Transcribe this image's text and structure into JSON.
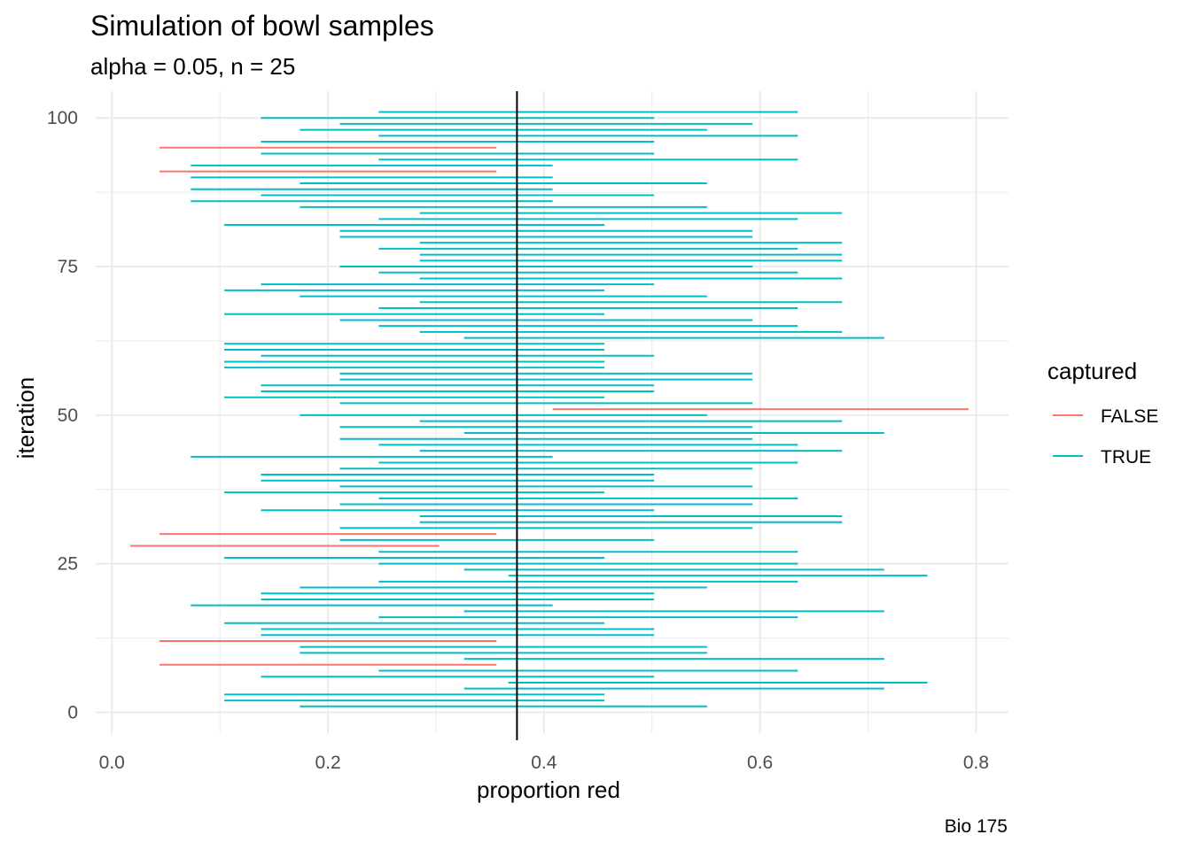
{
  "chart_data": {
    "type": "interval",
    "title": "Simulation of bowl samples",
    "subtitle": "alpha = 0.05, n = 25",
    "xlabel": "proportion red",
    "ylabel": "iteration",
    "caption": "Bio 175",
    "xlim": [
      -0.015,
      0.83
    ],
    "ylim": [
      -3.5,
      104.5
    ],
    "x_ticks": [
      {
        "value": 0,
        "label": "0.0"
      },
      {
        "value": 0.2,
        "label": "0.2"
      },
      {
        "value": 0.4,
        "label": "0.4"
      },
      {
        "value": 0.6,
        "label": "0.6"
      },
      {
        "value": 0.8,
        "label": "0.8"
      }
    ],
    "y_ticks": [
      {
        "value": 0,
        "label": "0"
      },
      {
        "value": 25,
        "label": "25"
      },
      {
        "value": 50,
        "label": "50"
      },
      {
        "value": 75,
        "label": "75"
      },
      {
        "value": 100,
        "label": "100"
      }
    ],
    "reference_line": 0.375,
    "grid": true,
    "legend": {
      "title": "captured",
      "position": "right",
      "entries": [
        {
          "label": "FALSE",
          "color": "#F8766D"
        },
        {
          "label": "TRUE",
          "color": "#00BFC4"
        }
      ]
    },
    "intervals": [
      {
        "y": 1,
        "low": 0.174,
        "high": 0.551,
        "captured": true
      },
      {
        "y": 2,
        "low": 0.104,
        "high": 0.456,
        "captured": true
      },
      {
        "y": 3,
        "low": 0.104,
        "high": 0.456,
        "captured": true
      },
      {
        "y": 4,
        "low": 0.326,
        "high": 0.715,
        "captured": true
      },
      {
        "y": 5,
        "low": 0.367,
        "high": 0.755,
        "captured": true
      },
      {
        "y": 6,
        "low": 0.138,
        "high": 0.502,
        "captured": true
      },
      {
        "y": 7,
        "low": 0.247,
        "high": 0.635,
        "captured": true
      },
      {
        "y": 8,
        "low": 0.044,
        "high": 0.356,
        "captured": false
      },
      {
        "y": 9,
        "low": 0.326,
        "high": 0.715,
        "captured": true
      },
      {
        "y": 10,
        "low": 0.174,
        "high": 0.551,
        "captured": true
      },
      {
        "y": 11,
        "low": 0.174,
        "high": 0.551,
        "captured": true
      },
      {
        "y": 12,
        "low": 0.044,
        "high": 0.356,
        "captured": false
      },
      {
        "y": 13,
        "low": 0.138,
        "high": 0.502,
        "captured": true
      },
      {
        "y": 14,
        "low": 0.138,
        "high": 0.502,
        "captured": true
      },
      {
        "y": 15,
        "low": 0.104,
        "high": 0.456,
        "captured": true
      },
      {
        "y": 16,
        "low": 0.247,
        "high": 0.635,
        "captured": true
      },
      {
        "y": 17,
        "low": 0.326,
        "high": 0.715,
        "captured": true
      },
      {
        "y": 18,
        "low": 0.073,
        "high": 0.408,
        "captured": true
      },
      {
        "y": 19,
        "low": 0.138,
        "high": 0.502,
        "captured": true
      },
      {
        "y": 20,
        "low": 0.138,
        "high": 0.502,
        "captured": true
      },
      {
        "y": 21,
        "low": 0.174,
        "high": 0.551,
        "captured": true
      },
      {
        "y": 22,
        "low": 0.247,
        "high": 0.635,
        "captured": true
      },
      {
        "y": 23,
        "low": 0.367,
        "high": 0.755,
        "captured": true
      },
      {
        "y": 24,
        "low": 0.326,
        "high": 0.715,
        "captured": true
      },
      {
        "y": 25,
        "low": 0.247,
        "high": 0.635,
        "captured": true
      },
      {
        "y": 26,
        "low": 0.104,
        "high": 0.456,
        "captured": true
      },
      {
        "y": 27,
        "low": 0.247,
        "high": 0.635,
        "captured": true
      },
      {
        "y": 28,
        "low": 0.017,
        "high": 0.303,
        "captured": false
      },
      {
        "y": 29,
        "low": 0.211,
        "high": 0.502,
        "captured": true
      },
      {
        "y": 30,
        "low": 0.044,
        "high": 0.356,
        "captured": false
      },
      {
        "y": 31,
        "low": 0.211,
        "high": 0.593,
        "captured": true
      },
      {
        "y": 32,
        "low": 0.285,
        "high": 0.676,
        "captured": true
      },
      {
        "y": 33,
        "low": 0.285,
        "high": 0.676,
        "captured": true
      },
      {
        "y": 34,
        "low": 0.138,
        "high": 0.502,
        "captured": true
      },
      {
        "y": 35,
        "low": 0.211,
        "high": 0.593,
        "captured": true
      },
      {
        "y": 36,
        "low": 0.247,
        "high": 0.635,
        "captured": true
      },
      {
        "y": 37,
        "low": 0.104,
        "high": 0.456,
        "captured": true
      },
      {
        "y": 38,
        "low": 0.211,
        "high": 0.593,
        "captured": true
      },
      {
        "y": 39,
        "low": 0.138,
        "high": 0.502,
        "captured": true
      },
      {
        "y": 40,
        "low": 0.138,
        "high": 0.502,
        "captured": true
      },
      {
        "y": 41,
        "low": 0.211,
        "high": 0.593,
        "captured": true
      },
      {
        "y": 42,
        "low": 0.247,
        "high": 0.635,
        "captured": true
      },
      {
        "y": 43,
        "low": 0.073,
        "high": 0.408,
        "captured": true
      },
      {
        "y": 44,
        "low": 0.285,
        "high": 0.676,
        "captured": true
      },
      {
        "y": 45,
        "low": 0.247,
        "high": 0.635,
        "captured": true
      },
      {
        "y": 46,
        "low": 0.211,
        "high": 0.593,
        "captured": true
      },
      {
        "y": 47,
        "low": 0.326,
        "high": 0.715,
        "captured": true
      },
      {
        "y": 48,
        "low": 0.211,
        "high": 0.593,
        "captured": true
      },
      {
        "y": 49,
        "low": 0.285,
        "high": 0.676,
        "captured": true
      },
      {
        "y": 50,
        "low": 0.174,
        "high": 0.551,
        "captured": true
      },
      {
        "y": 51,
        "low": 0.408,
        "high": 0.793,
        "captured": false
      },
      {
        "y": 52,
        "low": 0.211,
        "high": 0.593,
        "captured": true
      },
      {
        "y": 53,
        "low": 0.104,
        "high": 0.456,
        "captured": true
      },
      {
        "y": 54,
        "low": 0.138,
        "high": 0.502,
        "captured": true
      },
      {
        "y": 55,
        "low": 0.138,
        "high": 0.502,
        "captured": true
      },
      {
        "y": 56,
        "low": 0.211,
        "high": 0.593,
        "captured": true
      },
      {
        "y": 57,
        "low": 0.211,
        "high": 0.593,
        "captured": true
      },
      {
        "y": 58,
        "low": 0.104,
        "high": 0.456,
        "captured": true
      },
      {
        "y": 59,
        "low": 0.104,
        "high": 0.456,
        "captured": true
      },
      {
        "y": 60,
        "low": 0.138,
        "high": 0.502,
        "captured": true
      },
      {
        "y": 61,
        "low": 0.104,
        "high": 0.456,
        "captured": true
      },
      {
        "y": 62,
        "low": 0.104,
        "high": 0.456,
        "captured": true
      },
      {
        "y": 63,
        "low": 0.326,
        "high": 0.715,
        "captured": true
      },
      {
        "y": 64,
        "low": 0.285,
        "high": 0.676,
        "captured": true
      },
      {
        "y": 65,
        "low": 0.247,
        "high": 0.635,
        "captured": true
      },
      {
        "y": 66,
        "low": 0.211,
        "high": 0.593,
        "captured": true
      },
      {
        "y": 67,
        "low": 0.104,
        "high": 0.456,
        "captured": true
      },
      {
        "y": 68,
        "low": 0.247,
        "high": 0.635,
        "captured": true
      },
      {
        "y": 69,
        "low": 0.285,
        "high": 0.676,
        "captured": true
      },
      {
        "y": 70,
        "low": 0.174,
        "high": 0.551,
        "captured": true
      },
      {
        "y": 71,
        "low": 0.104,
        "high": 0.456,
        "captured": true
      },
      {
        "y": 72,
        "low": 0.138,
        "high": 0.502,
        "captured": true
      },
      {
        "y": 73,
        "low": 0.285,
        "high": 0.676,
        "captured": true
      },
      {
        "y": 74,
        "low": 0.247,
        "high": 0.635,
        "captured": true
      },
      {
        "y": 75,
        "low": 0.211,
        "high": 0.593,
        "captured": true
      },
      {
        "y": 76,
        "low": 0.285,
        "high": 0.676,
        "captured": true
      },
      {
        "y": 77,
        "low": 0.285,
        "high": 0.676,
        "captured": true
      },
      {
        "y": 78,
        "low": 0.247,
        "high": 0.635,
        "captured": true
      },
      {
        "y": 79,
        "low": 0.285,
        "high": 0.676,
        "captured": true
      },
      {
        "y": 80,
        "low": 0.211,
        "high": 0.593,
        "captured": true
      },
      {
        "y": 81,
        "low": 0.211,
        "high": 0.593,
        "captured": true
      },
      {
        "y": 82,
        "low": 0.104,
        "high": 0.456,
        "captured": true
      },
      {
        "y": 83,
        "low": 0.247,
        "high": 0.635,
        "captured": true
      },
      {
        "y": 84,
        "low": 0.285,
        "high": 0.676,
        "captured": true
      },
      {
        "y": 85,
        "low": 0.174,
        "high": 0.551,
        "captured": true
      },
      {
        "y": 86,
        "low": 0.073,
        "high": 0.408,
        "captured": true
      },
      {
        "y": 87,
        "low": 0.138,
        "high": 0.502,
        "captured": true
      },
      {
        "y": 88,
        "low": 0.073,
        "high": 0.408,
        "captured": true
      },
      {
        "y": 89,
        "low": 0.174,
        "high": 0.551,
        "captured": true
      },
      {
        "y": 90,
        "low": 0.073,
        "high": 0.408,
        "captured": true
      },
      {
        "y": 91,
        "low": 0.044,
        "high": 0.356,
        "captured": false
      },
      {
        "y": 92,
        "low": 0.073,
        "high": 0.408,
        "captured": true
      },
      {
        "y": 93,
        "low": 0.247,
        "high": 0.635,
        "captured": true
      },
      {
        "y": 94,
        "low": 0.138,
        "high": 0.502,
        "captured": true
      },
      {
        "y": 95,
        "low": 0.044,
        "high": 0.356,
        "captured": false
      },
      {
        "y": 96,
        "low": 0.138,
        "high": 0.502,
        "captured": true
      },
      {
        "y": 97,
        "low": 0.247,
        "high": 0.635,
        "captured": true
      },
      {
        "y": 98,
        "low": 0.174,
        "high": 0.551,
        "captured": true
      },
      {
        "y": 99,
        "low": 0.211,
        "high": 0.593,
        "captured": true
      },
      {
        "y": 100,
        "low": 0.138,
        "high": 0.502,
        "captured": true
      },
      {
        "y": 101,
        "low": 0.247,
        "high": 0.635,
        "captured": true
      }
    ]
  }
}
